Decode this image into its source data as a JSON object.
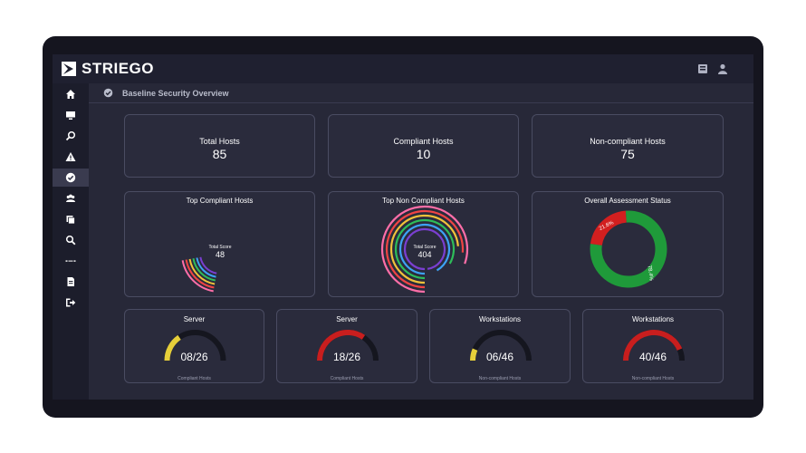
{
  "app": {
    "name": "STRIEGO"
  },
  "breadcrumb": {
    "title": "Baseline Security Overview"
  },
  "sidebar": {
    "items": [
      {
        "icon": "home-icon",
        "active": false
      },
      {
        "icon": "monitor-icon",
        "active": false
      },
      {
        "icon": "search-icon",
        "active": false
      },
      {
        "icon": "warning-icon",
        "active": false
      },
      {
        "icon": "check-circle-icon",
        "active": true
      },
      {
        "icon": "users-icon",
        "active": false
      },
      {
        "icon": "reports-icon",
        "active": false
      },
      {
        "icon": "magnifier-icon",
        "active": false
      },
      {
        "icon": "dots-icon",
        "active": false
      },
      {
        "icon": "document-icon",
        "active": false
      },
      {
        "icon": "logout-icon",
        "active": false
      }
    ]
  },
  "stats": [
    {
      "label": "Total Hosts",
      "value": "85"
    },
    {
      "label": "Compliant Hosts",
      "value": "10"
    },
    {
      "label": "Non-compliant Hosts",
      "value": "75"
    }
  ],
  "charts": {
    "top_compliant": {
      "title": "Top Compliant Hosts",
      "center_caption": "Total Score",
      "center_value": "48"
    },
    "top_non_compliant": {
      "title": "Top Non Compliant Hosts",
      "center_caption": "Total Score",
      "center_value": "404"
    },
    "overall": {
      "title": "Overall Assessment Status",
      "segments": [
        {
          "label": "21.6%",
          "value": 21.6,
          "color": "#d21f1f"
        },
        {
          "label": "78.4%",
          "value": 78.4,
          "color": "#1f9a3a"
        }
      ]
    }
  },
  "gauges": [
    {
      "title": "Server",
      "value": "08/26",
      "caption": "Compliant Hosts",
      "fraction": 0.31,
      "color": "#e6cf3a"
    },
    {
      "title": "Server",
      "value": "18/26",
      "caption": "Compliant Hosts",
      "fraction": 0.69,
      "color": "#c81e1e"
    },
    {
      "title": "Workstations",
      "value": "06/46",
      "caption": "Non-compliant Hosts",
      "fraction": 0.13,
      "color": "#e6cf3a"
    },
    {
      "title": "Workstations",
      "value": "40/46",
      "caption": "Non-compliant Hosts",
      "fraction": 0.87,
      "color": "#c81e1e"
    }
  ],
  "colors": {
    "bar_palette": [
      "#7a3fd1",
      "#3da2f5",
      "#2ebd5a",
      "#f0c23a",
      "#ef4444",
      "#ff6ea8"
    ]
  }
}
